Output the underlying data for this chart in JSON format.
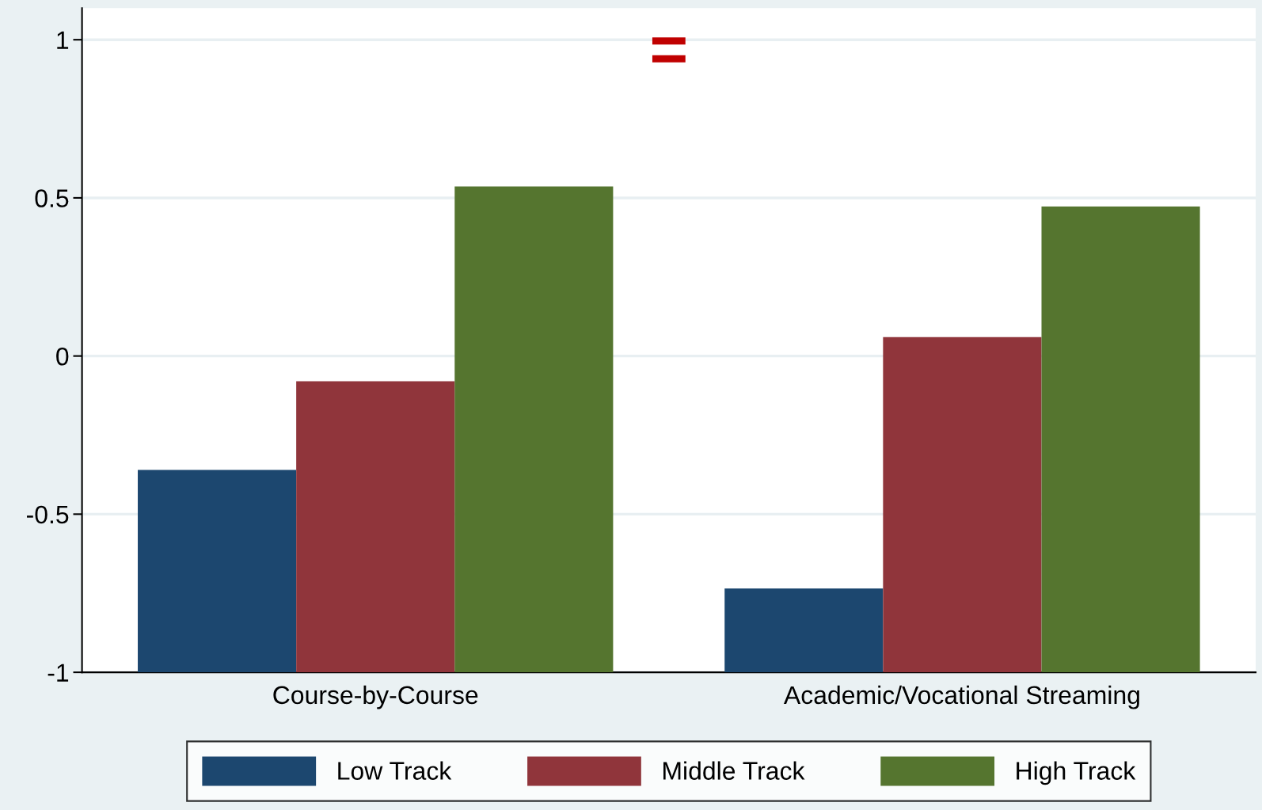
{
  "chart_data": {
    "type": "bar",
    "categories": [
      "Course-by-Course",
      "Academic/Vocational Streaming"
    ],
    "series": [
      {
        "name": "Low Track",
        "color": "#1c476f",
        "base": [
          -1,
          -1
        ],
        "values": [
          0.64,
          0.265
        ]
      },
      {
        "name": "Middle Track",
        "color": "#90353b",
        "base": [
          -1,
          -1
        ],
        "values": [
          0.92,
          1.06
        ]
      },
      {
        "name": "High Track",
        "color": "#55752f",
        "base": [
          -1,
          -1
        ],
        "values": [
          1.536,
          1.473
        ]
      }
    ],
    "ylim": [
      -1,
      1.1
    ],
    "yticks": [
      -1,
      -0.5,
      0,
      0.5,
      1
    ],
    "grid": "y",
    "legend": "bottom",
    "annotations": [
      "="
    ]
  }
}
